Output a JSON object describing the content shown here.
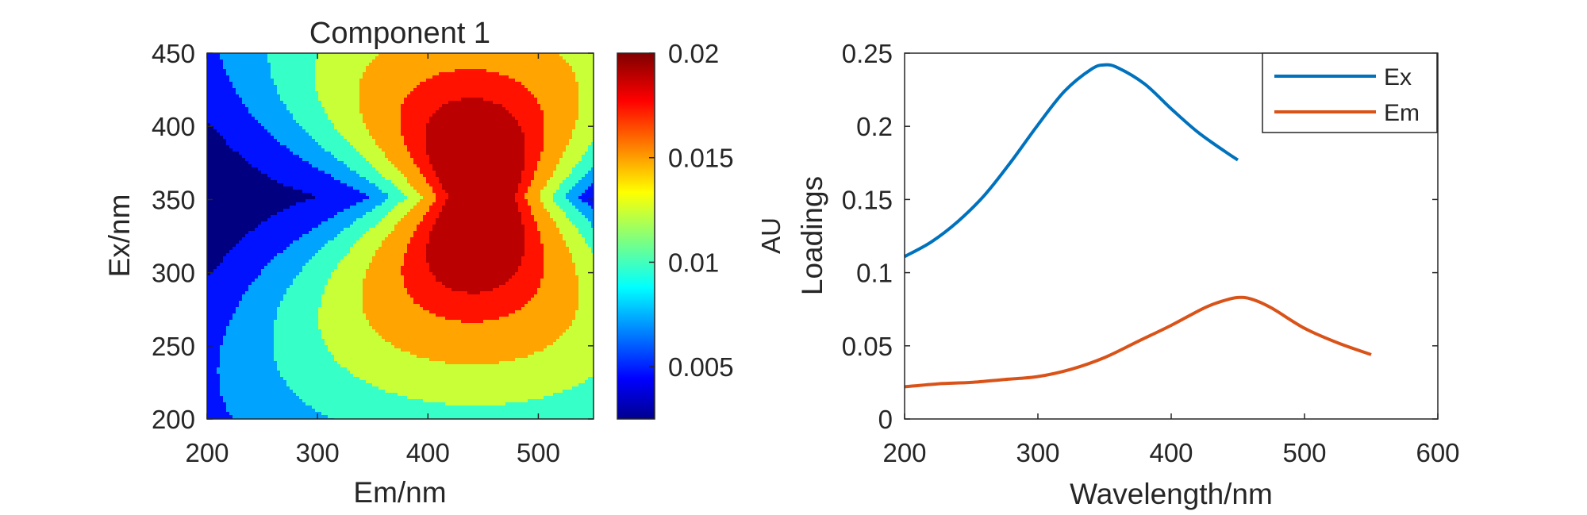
{
  "chart_data": [
    {
      "type": "heatmap",
      "subtype": "filled-contour",
      "title": "Component 1",
      "xlabel": "Em/nm",
      "ylabel": "Ex/nm",
      "xlim": [
        200,
        550
      ],
      "ylim": [
        200,
        450
      ],
      "x_ticks": [
        "200",
        "300",
        "400",
        "500"
      ],
      "y_ticks": [
        "200",
        "250",
        "300",
        "350",
        "400",
        "450"
      ],
      "colormap": "jet",
      "colorbar": {
        "label": "AU",
        "range": [
          0.0025,
          0.02
        ],
        "ticks": [
          "0.005",
          "0.01",
          "0.015",
          "0.02"
        ]
      },
      "peak": {
        "em": 452,
        "ex": 352,
        "value": 0.02
      },
      "contour_levels": [
        0.0025,
        0.005,
        0.0075,
        0.01,
        0.0125,
        0.015,
        0.0175,
        0.019
      ]
    },
    {
      "type": "line",
      "xlabel": "Wavelength/nm",
      "ylabel": "Loadings",
      "xlim": [
        200,
        600
      ],
      "ylim": [
        0,
        0.25
      ],
      "x_ticks": [
        "200",
        "300",
        "400",
        "500",
        "600"
      ],
      "y_ticks": [
        "0",
        "0.05",
        "0.1",
        "0.15",
        "0.2",
        "0.25"
      ],
      "legend_position": "top-right",
      "series": [
        {
          "name": "Ex",
          "color": "#0072bd",
          "x": [
            200,
            220,
            240,
            260,
            280,
            300,
            320,
            340,
            350,
            360,
            380,
            400,
            420,
            440,
            450
          ],
          "y": [
            0.111,
            0.121,
            0.135,
            0.153,
            0.176,
            0.201,
            0.224,
            0.239,
            0.242,
            0.24,
            0.229,
            0.212,
            0.196,
            0.183,
            0.177
          ]
        },
        {
          "name": "Em",
          "color": "#d95319",
          "x": [
            200,
            225,
            250,
            275,
            300,
            325,
            350,
            375,
            400,
            425,
            440,
            450,
            460,
            475,
            500,
            525,
            550
          ],
          "y": [
            0.022,
            0.024,
            0.025,
            0.027,
            0.029,
            0.034,
            0.042,
            0.053,
            0.064,
            0.076,
            0.081,
            0.083,
            0.082,
            0.076,
            0.062,
            0.052,
            0.044
          ]
        }
      ]
    }
  ]
}
